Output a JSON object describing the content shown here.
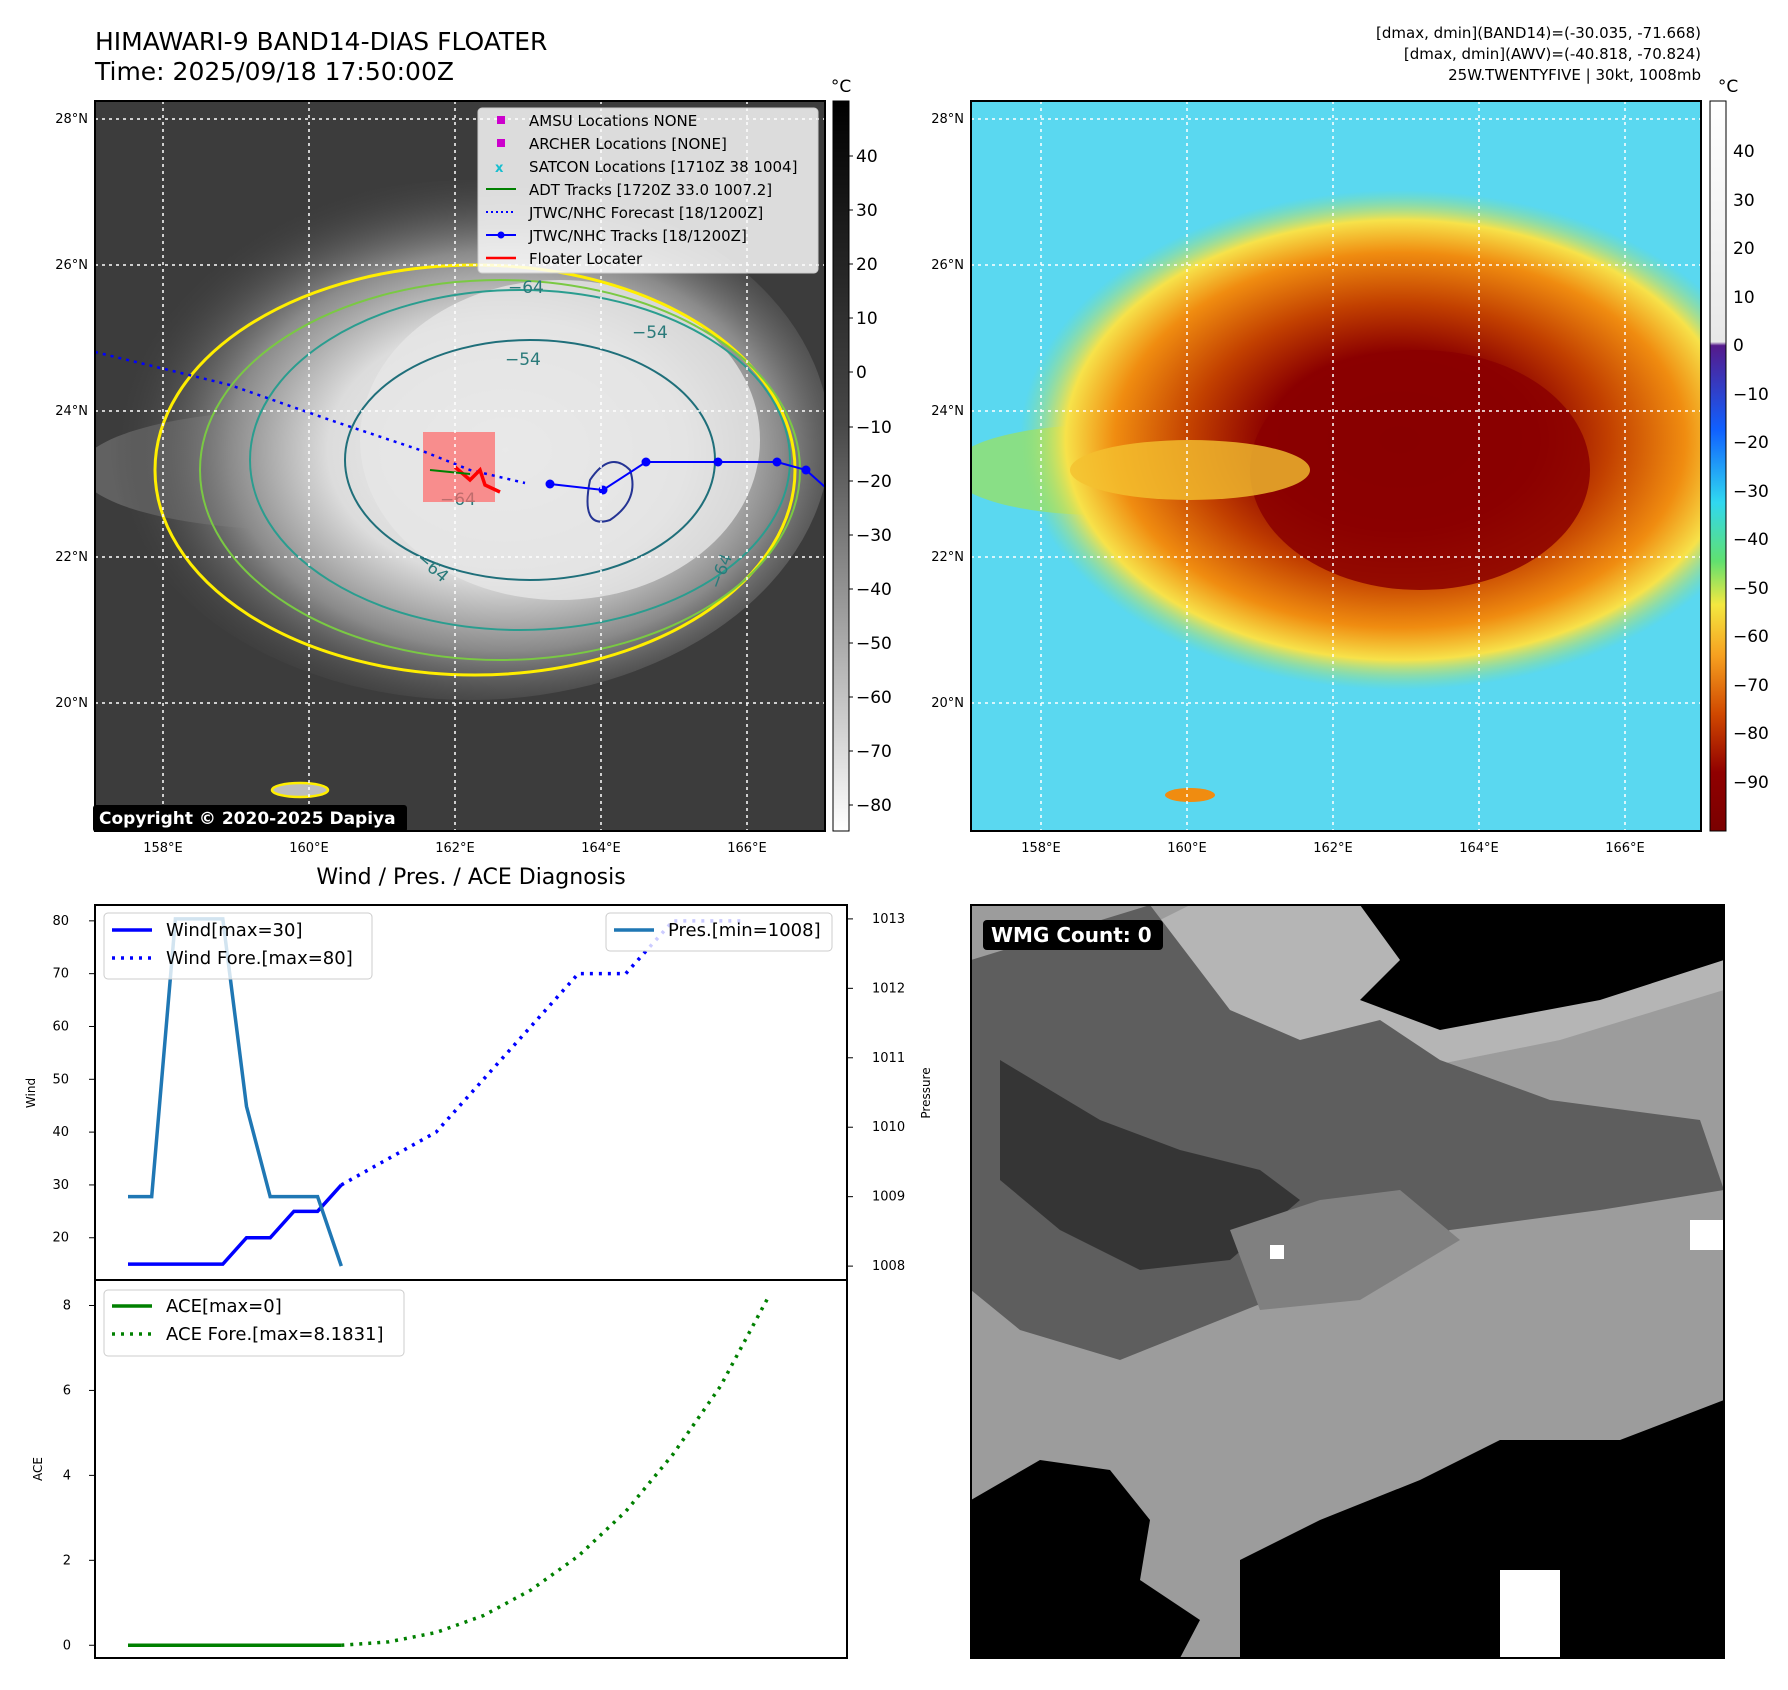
{
  "header": {
    "title_line1": "HIMAWARI-9 BAND14-DIAS FLOATER",
    "title_line2": "Time: 2025/09/18 17:50:00Z",
    "info_line1": "[dmax, dmin](BAND14)=(-30.035, -71.668)",
    "info_line2": "[dmax, dmin](AWV)=(-40.818, -70.824)",
    "info_line3": "25W.TWENTYFIVE | 30kt, 1008mb"
  },
  "map_common": {
    "lat_ticks": [
      "28°N",
      "26°N",
      "24°N",
      "22°N",
      "20°N"
    ],
    "lon_ticks": [
      "158°E",
      "160°E",
      "162°E",
      "164°E",
      "166°E"
    ],
    "cbar_unit": "°C"
  },
  "map_gray": {
    "colorbar_ticks": [
      "40",
      "30",
      "20",
      "10",
      "0",
      "−10",
      "−20",
      "−30",
      "−40",
      "−50",
      "−60",
      "−70",
      "−80"
    ],
    "contour_labels": [
      "−64",
      "−54",
      "−54",
      "−64",
      "−64",
      "−64"
    ],
    "copyright": "Copyright © 2020-2025 Dapiya",
    "legend": [
      {
        "label": "AMSU Locations NONE",
        "color": "#cc00cc",
        "icon": "square-marker"
      },
      {
        "label": "ARCHER Locations [NONE]",
        "color": "#cc00cc",
        "icon": "square-marker"
      },
      {
        "label": "SATCON Locations [1710Z 38 1004]",
        "color": "#17becf",
        "icon": "x-marker"
      },
      {
        "label": "ADT Tracks [1720Z 33.0 1007.2]",
        "color": "#008000",
        "icon": "solid-line"
      },
      {
        "label": "JTWC/NHC Forecast [18/1200Z]",
        "color": "#0000ff",
        "icon": "dotted-line"
      },
      {
        "label": "JTWC/NHC Tracks [18/1200Z]",
        "color": "#0000ff",
        "icon": "line-dot-marker"
      },
      {
        "label": "Floater Locater",
        "color": "#ff0000",
        "icon": "solid-line"
      }
    ]
  },
  "map_color": {
    "colorbar_ticks": [
      "40",
      "30",
      "20",
      "10",
      "0",
      "−10",
      "−20",
      "−30",
      "−40",
      "−50",
      "−60",
      "−70",
      "−80",
      "−90"
    ]
  },
  "wmg": {
    "badge": "WMG Count: 0"
  },
  "chart_data": [
    {
      "type": "line",
      "title": "Wind / Pres. / ACE Diagnosis",
      "ylabel": "Wind",
      "ylabel_right": "Pressure",
      "ylim": [
        12,
        83
      ],
      "ylim_right": [
        1007.8,
        1013.2
      ],
      "yticks": [
        20,
        30,
        40,
        50,
        60,
        70,
        80
      ],
      "yticks_right": [
        1008,
        1009,
        1010,
        1011,
        1012,
        1013
      ],
      "series": [
        {
          "name": "Wind[max=30]",
          "color": "#0000ff",
          "style": "solid",
          "axis": "left",
          "x": [
            0,
            1,
            2,
            3,
            4,
            5,
            6,
            7,
            8,
            9
          ],
          "values": [
            15,
            15,
            15,
            15,
            15,
            20,
            20,
            25,
            25,
            30
          ]
        },
        {
          "name": "Wind Fore.[max=80]",
          "color": "#0000ff",
          "style": "dotted",
          "axis": "left",
          "x": [
            9,
            13,
            17,
            19,
            21,
            22,
            23,
            25,
            26
          ],
          "values": [
            30,
            40,
            60,
            70,
            70,
            75,
            80,
            80,
            80
          ]
        },
        {
          "name": "Pres.[min=1008]",
          "color": "#1f77b4",
          "style": "solid",
          "axis": "right",
          "x": [
            0,
            1,
            2,
            3,
            4,
            5,
            6,
            7,
            8,
            9
          ],
          "values": [
            1009,
            1009,
            1013,
            1013,
            1013,
            1010.3,
            1009,
            1009,
            1009,
            1008
          ]
        }
      ]
    },
    {
      "type": "line",
      "ylabel": "ACE",
      "ylim": [
        -0.3,
        8.6
      ],
      "yticks": [
        0,
        2,
        4,
        6,
        8
      ],
      "series": [
        {
          "name": "ACE[max=0]",
          "color": "#008000",
          "style": "solid",
          "x": [
            0,
            9
          ],
          "values": [
            0,
            0
          ]
        },
        {
          "name": "ACE Fore.[max=8.1831]",
          "color": "#008000",
          "style": "dotted",
          "x": [
            9,
            11,
            13,
            15,
            17,
            19,
            21,
            23,
            25,
            27
          ],
          "values": [
            0,
            0.08,
            0.3,
            0.7,
            1.3,
            2.1,
            3.15,
            4.5,
            6.1,
            8.18
          ]
        }
      ]
    }
  ]
}
